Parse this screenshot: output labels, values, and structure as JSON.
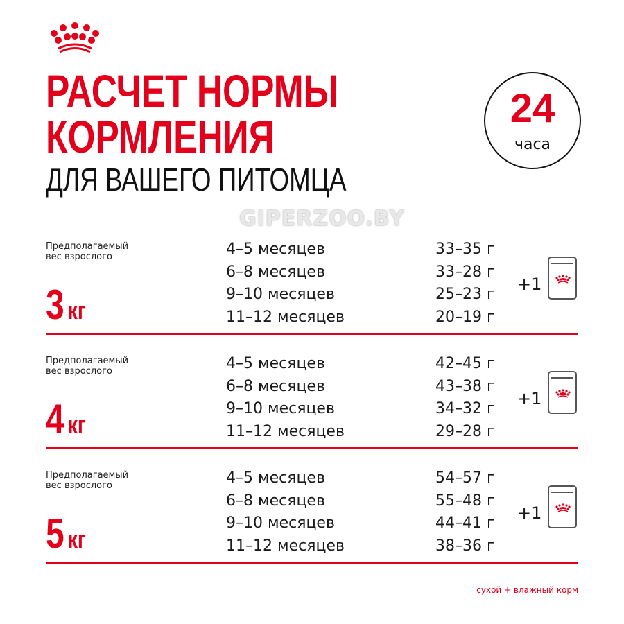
{
  "brand": {
    "logo": "royal-canin-crown-icon",
    "accent": "#e2001a"
  },
  "header": {
    "title_line1": "РАСЧЕТ НОРМЫ",
    "title_line2": "КОРМЛЕНИЯ",
    "subtitle": "ДЛЯ ВАШЕГО ПИТОМЦА"
  },
  "badge": {
    "number": "24",
    "unit": "часа"
  },
  "sections": [
    {
      "label_line1": "Предполагаемый",
      "label_line2": "вес взрослого",
      "weight": "3",
      "weight_unit": "кг",
      "plus": "+1",
      "rows": [
        {
          "age": "4–5 месяцев",
          "amount": "33–35 г"
        },
        {
          "age": "6–8 месяцев",
          "amount": "33–28 г"
        },
        {
          "age": "9–10 месяцев",
          "amount": "25–23 г"
        },
        {
          "age": "11–12 месяцев",
          "amount": "20–19 г"
        }
      ]
    },
    {
      "label_line1": "Предполагаемый",
      "label_line2": "вес взрослого",
      "weight": "4",
      "weight_unit": "кг",
      "plus": "+1",
      "rows": [
        {
          "age": "4–5 месяцев",
          "amount": "42–45 г"
        },
        {
          "age": "6–8 месяцев",
          "amount": "43–38 г"
        },
        {
          "age": "9–10 месяцев",
          "amount": "34–32 г"
        },
        {
          "age": "11–12 месяцев",
          "amount": "29–28 г"
        }
      ]
    },
    {
      "label_line1": "Предполагаемый",
      "label_line2": "вес взрослого",
      "weight": "5",
      "weight_unit": "кг",
      "plus": "+1",
      "rows": [
        {
          "age": "4–5 месяцев",
          "amount": "54–57 г"
        },
        {
          "age": "6–8 месяцев",
          "amount": "55–48 г"
        },
        {
          "age": "9–10 месяцев",
          "amount": "44–41 г"
        },
        {
          "age": "11–12 месяцев",
          "amount": "38–36 г"
        }
      ]
    }
  ],
  "footer": "сухой + влажный корм",
  "watermark": "GIPERZOO.BY"
}
